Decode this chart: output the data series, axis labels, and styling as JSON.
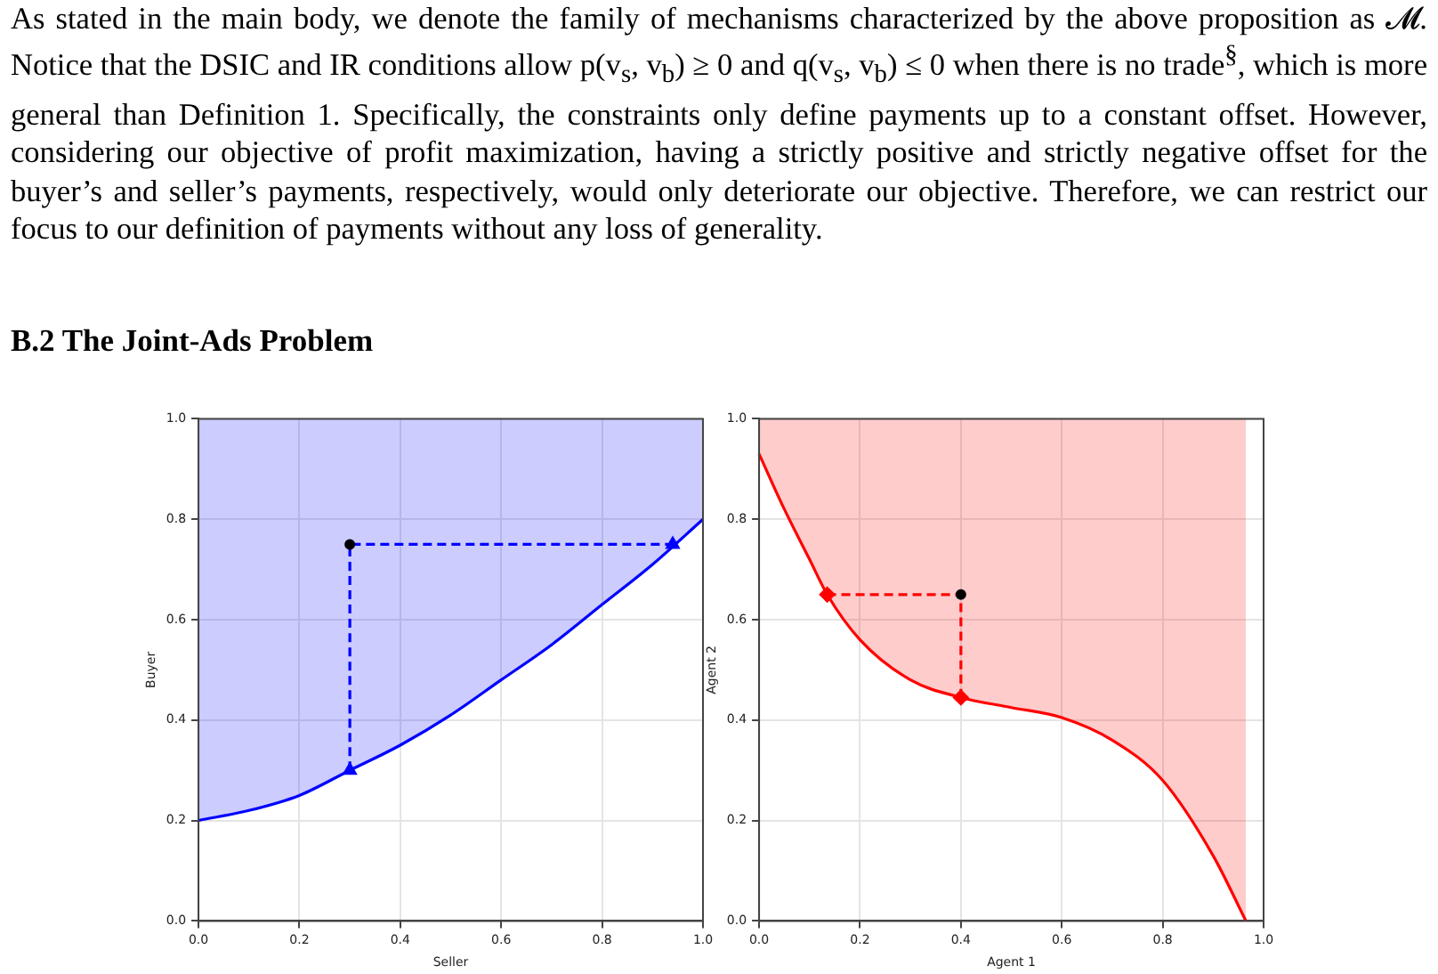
{
  "chart_data": [
    {
      "type": "line",
      "title": "B.2   The Joint-Ads Problem",
      "annotations": [
        "As stated in the main body, we denote the family of mechanisms characterized by the above proposition as 𝓜. Notice that the DSIC and IR conditions allow p(v$_{s}$, v$_{b}$) ≥ 0 and q(v$_{s}$, v$_{b}$) ≤ 0 when there is no trade$^{§}$, which is more general than Definition 1. Specifically, the constraints only define payments up to a constant offset. However, considering our objective of profit maximization, having a strictly positive and strictly negative offset for the buyer’s and seller’s payments, respectively, would only deteriorate our objective. Therefore, we can restrict our focus to our definition of payments without any loss of generality."
      ],
      "xlabel": "Seller",
      "ylabel": "Buyer",
      "xlim": [
        0,
        1
      ],
      "ylim": [
        0,
        1
      ],
      "xticks": [
        {
          "value": 0,
          "label": "0.0"
        },
        {
          "value": 0.2,
          "label": "0.2"
        },
        {
          "value": 0.4,
          "label": "0.4"
        },
        {
          "value": 0.6,
          "label": "0.6"
        },
        {
          "value": 0.8,
          "label": "0.8"
        },
        {
          "value": 1,
          "label": "1.0"
        }
      ],
      "yticks": [
        {
          "value": 0,
          "label": "0.0"
        },
        {
          "value": 0.2,
          "label": "0.2"
        },
        {
          "value": 0.4,
          "label": "0.4"
        },
        {
          "value": 0.6,
          "label": "0.6"
        },
        {
          "value": 0.8,
          "label": "0.8"
        },
        {
          "value": 1,
          "label": "1.0"
        }
      ],
      "grid": true,
      "legend": false,
      "series": [
        {
          "type": "line",
          "color": "#0000ff",
          "marker": "none",
          "line_style": "solid",
          "x": [
            0,
            0.1,
            0.2,
            0.3,
            0.4,
            0.5,
            0.6,
            0.7,
            0.8,
            0.9,
            1
          ],
          "values": [
            0.2,
            0.22,
            0.25,
            0.3,
            0.35,
            0.41,
            0.48,
            0.55,
            0.63,
            0.71,
            0.8
          ],
          "lower": [
            0.2,
            0.22,
            0.25,
            0.3,
            0.35,
            0.41,
            0.48,
            0.55,
            0.63,
            0.71,
            0.8
          ],
          "upper": [
            1,
            1,
            1,
            1,
            1,
            1,
            1,
            1,
            1,
            1,
            1
          ]
        },
        {
          "type": "line",
          "color": "#0000ff",
          "marker": "none",
          "line_style": "dashed",
          "x": [
            0.3,
            0.3,
            0.94
          ],
          "values": [
            0.3,
            0.75,
            0.75
          ]
        },
        {
          "type": "scatter",
          "color": "#0000ff",
          "marker": "triangle",
          "x": [
            0.3,
            0.94
          ],
          "values": [
            0.3,
            0.75
          ]
        },
        {
          "type": "scatter",
          "color": "#000000",
          "marker": "circle",
          "x": [
            0.3
          ],
          "values": [
            0.75
          ]
        }
      ]
    },
    {
      "type": "line",
      "xlabel": "Agent 1",
      "ylabel": "Agent 2",
      "xlim": [
        0,
        1
      ],
      "ylim": [
        0,
        1
      ],
      "xticks": [
        {
          "value": 0,
          "label": "0.0"
        },
        {
          "value": 0.2,
          "label": "0.2"
        },
        {
          "value": 0.4,
          "label": "0.4"
        },
        {
          "value": 0.6,
          "label": "0.6"
        },
        {
          "value": 0.8,
          "label": "0.8"
        },
        {
          "value": 1,
          "label": "1.0"
        }
      ],
      "yticks": [
        {
          "value": 0,
          "label": "0.0"
        },
        {
          "value": 0.2,
          "label": "0.2"
        },
        {
          "value": 0.4,
          "label": "0.4"
        },
        {
          "value": 0.6,
          "label": "0.6"
        },
        {
          "value": 0.8,
          "label": "0.8"
        },
        {
          "value": 1,
          "label": "1.0"
        }
      ],
      "grid": true,
      "legend": false,
      "series": [
        {
          "type": "line",
          "color": "#ff0000",
          "marker": "none",
          "line_style": "solid",
          "x": [
            0,
            0.05,
            0.1,
            0.135,
            0.2,
            0.3,
            0.4,
            0.5,
            0.6,
            0.7,
            0.8,
            0.9,
            0.965
          ],
          "values": [
            0.93,
            0.82,
            0.72,
            0.65,
            0.56,
            0.48,
            0.445,
            0.425,
            0.405,
            0.36,
            0.28,
            0.13,
            0
          ],
          "lower": [
            0.93,
            0.82,
            0.72,
            0.65,
            0.56,
            0.48,
            0.445,
            0.425,
            0.405,
            0.36,
            0.28,
            0.13,
            0
          ],
          "upper": [
            1,
            1,
            1,
            1,
            1,
            1,
            1,
            1,
            1,
            1,
            1,
            1,
            1
          ]
        },
        {
          "type": "line",
          "color": "#ff0000",
          "marker": "none",
          "line_style": "dashed",
          "x": [
            0.135,
            0.4,
            0.4
          ],
          "values": [
            0.65,
            0.65,
            0.445
          ]
        },
        {
          "type": "scatter",
          "color": "#ff0000",
          "marker": "diamond",
          "x": [
            0.135,
            0.4
          ],
          "values": [
            0.65,
            0.445
          ]
        },
        {
          "type": "scatter",
          "color": "#000000",
          "marker": "circle",
          "x": [
            0.4
          ],
          "values": [
            0.65
          ]
        }
      ]
    }
  ]
}
